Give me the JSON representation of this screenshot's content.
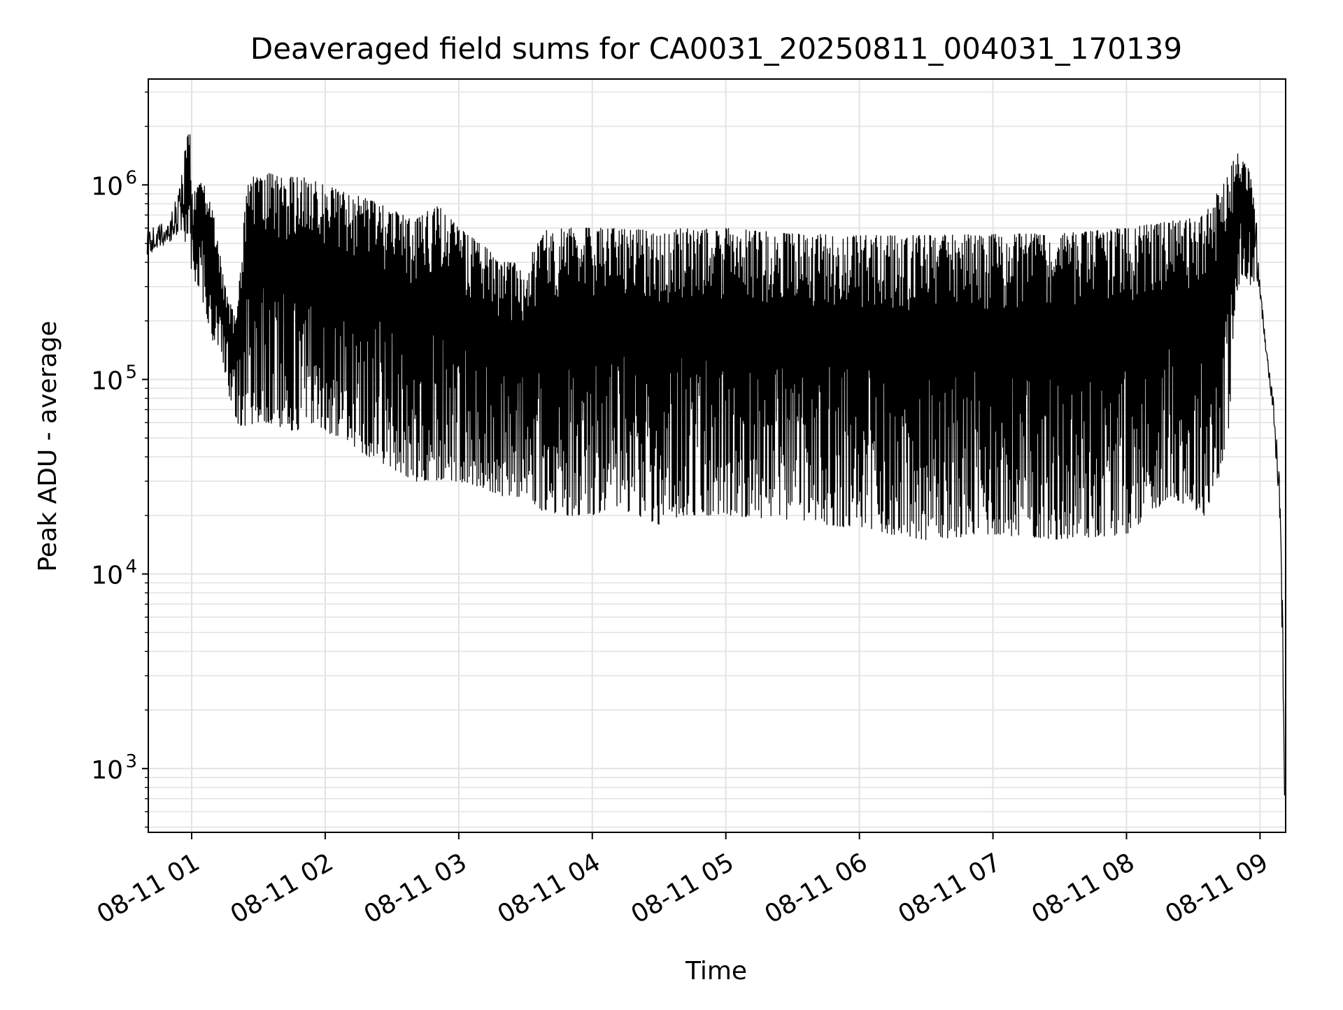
{
  "chart_data": {
    "type": "line",
    "title": "Deaveraged field sums for CA0031_20250811_004031_170139",
    "xlabel": "Time",
    "ylabel": "Peak ADU - average",
    "yscale": "log",
    "ylim": [
      470,
      3500000
    ],
    "xlim": [
      "2025-08-11 00:40:31",
      "2025-08-11 09:11:30"
    ],
    "grid": true,
    "line_color": "#000000",
    "x_ticks": [
      {
        "time": "2025-08-11 01:00",
        "label": "08-11 01"
      },
      {
        "time": "2025-08-11 02:00",
        "label": "08-11 02"
      },
      {
        "time": "2025-08-11 03:00",
        "label": "08-11 03"
      },
      {
        "time": "2025-08-11 04:00",
        "label": "08-11 04"
      },
      {
        "time": "2025-08-11 05:00",
        "label": "08-11 05"
      },
      {
        "time": "2025-08-11 06:00",
        "label": "08-11 06"
      },
      {
        "time": "2025-08-11 07:00",
        "label": "08-11 07"
      },
      {
        "time": "2025-08-11 08:00",
        "label": "08-11 08"
      },
      {
        "time": "2025-08-11 09:00",
        "label": "08-11 09"
      }
    ],
    "y_ticks": [
      {
        "value": 1000,
        "base": "10",
        "exp": "3"
      },
      {
        "value": 10000,
        "base": "10",
        "exp": "4"
      },
      {
        "value": 100000,
        "base": "10",
        "exp": "5"
      },
      {
        "value": 1000000,
        "base": "10",
        "exp": "6"
      }
    ],
    "series": [
      {
        "x": [
          "2025-08-11 00:40",
          "2025-08-11 00:45",
          "2025-08-11 00:50",
          "2025-08-11 00:55",
          "2025-08-11 00:59",
          "2025-08-11 01:00",
          "2025-08-11 01:05",
          "2025-08-11 01:10",
          "2025-08-11 01:15",
          "2025-08-11 01:20",
          "2025-08-11 01:25",
          "2025-08-11 01:30",
          "2025-08-11 01:35",
          "2025-08-11 01:40",
          "2025-08-11 01:45",
          "2025-08-11 01:50",
          "2025-08-11 01:55",
          "2025-08-11 02:00",
          "2025-08-11 02:10",
          "2025-08-11 02:20",
          "2025-08-11 02:30",
          "2025-08-11 02:40",
          "2025-08-11 02:50",
          "2025-08-11 03:00",
          "2025-08-11 03:10",
          "2025-08-11 03:20",
          "2025-08-11 03:30",
          "2025-08-11 03:40",
          "2025-08-11 03:50",
          "2025-08-11 04:00",
          "2025-08-11 04:10",
          "2025-08-11 04:20",
          "2025-08-11 04:30",
          "2025-08-11 04:40",
          "2025-08-11 04:50",
          "2025-08-11 05:00",
          "2025-08-11 05:30",
          "2025-08-11 06:00",
          "2025-08-11 06:30",
          "2025-08-11 07:00",
          "2025-08-11 07:30",
          "2025-08-11 08:00",
          "2025-08-11 08:20",
          "2025-08-11 08:35",
          "2025-08-11 08:45",
          "2025-08-11 08:50",
          "2025-08-11 08:55",
          "2025-08-11 08:58",
          "2025-08-11 09:00",
          "2025-08-11 09:03",
          "2025-08-11 09:06",
          "2025-08-11 09:09",
          "2025-08-11 09:11"
        ],
        "upper": [
          600000,
          620000,
          680000,
          1000000,
          2400000,
          900000,
          1050000,
          700000,
          300000,
          200000,
          1100000,
          1100000,
          1150000,
          1100000,
          1100000,
          1100000,
          1050000,
          1000000,
          900000,
          850000,
          750000,
          650000,
          800000,
          600000,
          500000,
          400000,
          400000,
          600000,
          600000,
          600000,
          600000,
          600000,
          550000,
          600000,
          600000,
          600000,
          560000,
          550000,
          550000,
          560000,
          560000,
          600000,
          650000,
          700000,
          1100000,
          1500000,
          1200000,
          800000,
          300000,
          150000,
          80000,
          30000,
          2000
        ],
        "lower": [
          400000,
          430000,
          450000,
          500000,
          500000,
          350000,
          250000,
          150000,
          100000,
          60000,
          55000,
          60000,
          60000,
          55000,
          55000,
          55000,
          60000,
          55000,
          45000,
          40000,
          35000,
          30000,
          30000,
          30000,
          28000,
          25000,
          25000,
          20000,
          20000,
          20000,
          22000,
          20000,
          18000,
          20000,
          20000,
          20000,
          19000,
          17000,
          15000,
          16000,
          15000,
          16000,
          25000,
          20000,
          40000,
          300000,
          300000,
          300000,
          250000,
          120000,
          60000,
          15000,
          700
        ]
      }
    ]
  }
}
